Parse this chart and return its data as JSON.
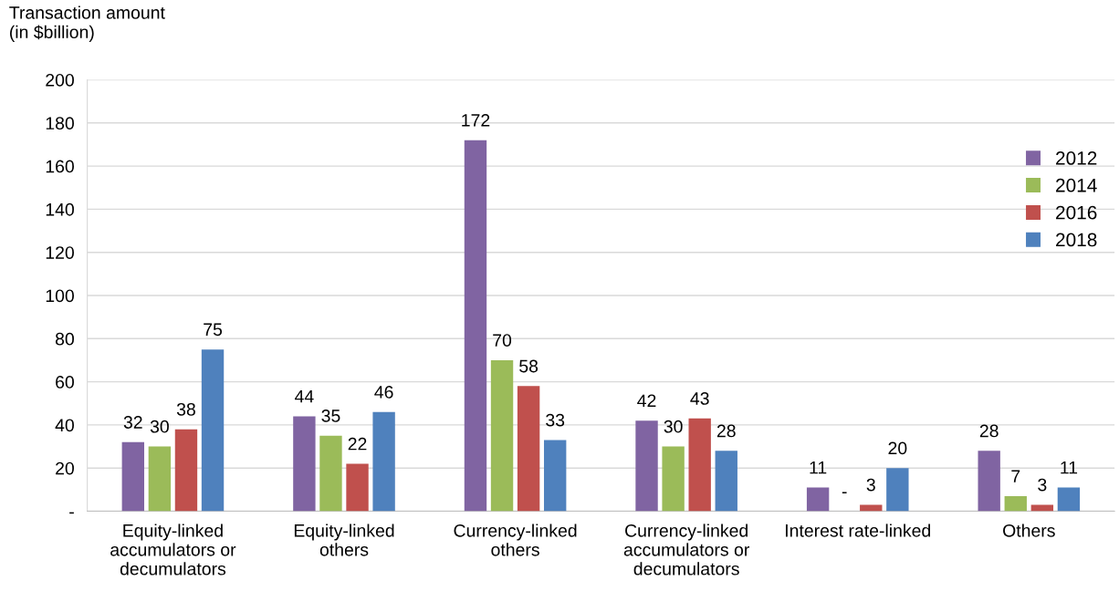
{
  "chart_data": {
    "type": "bar",
    "ylabel": "Transaction amount\n(in $billion)",
    "categories": [
      "Equity-linked\naccumulators or\ndecumulators",
      "Equity-linked\nothers",
      "Currency-linked\nothers",
      "Currency-linked\naccumulators or\ndecumulators",
      "Interest rate-linked",
      "Others"
    ],
    "series": [
      {
        "name": "2012",
        "color": "#8064a2",
        "values": [
          32,
          44,
          172,
          42,
          11,
          28
        ],
        "value_labels": [
          "32",
          "44",
          "172",
          "42",
          "11",
          "28"
        ]
      },
      {
        "name": "2014",
        "color": "#9bbb59",
        "values": [
          30,
          35,
          70,
          30,
          0,
          7
        ],
        "value_labels": [
          "30",
          "35",
          "70",
          "30",
          "-",
          "7"
        ]
      },
      {
        "name": "2016",
        "color": "#c0504d",
        "values": [
          38,
          22,
          58,
          43,
          3,
          3
        ],
        "value_labels": [
          "38",
          "22",
          "58",
          "43",
          "3",
          "3"
        ]
      },
      {
        "name": "2018",
        "color": "#4f81bd",
        "values": [
          75,
          46,
          33,
          28,
          20,
          11
        ],
        "value_labels": [
          "75",
          "46",
          "33",
          "28",
          "20",
          "11"
        ]
      }
    ],
    "ylim": [
      0,
      200
    ],
    "yticks": [
      {
        "value": 0,
        "label": "-"
      },
      20,
      40,
      60,
      80,
      100,
      120,
      140,
      160,
      180,
      200
    ],
    "grid": "y",
    "legend": "right"
  }
}
